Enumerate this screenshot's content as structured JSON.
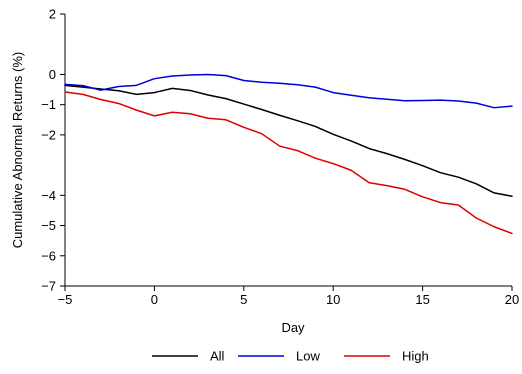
{
  "chart_data": {
    "type": "line",
    "title": "",
    "xlabel": "Day",
    "ylabel": "Cumulative Abnormal Returns (%)",
    "xlim": [
      -5,
      20
    ],
    "ylim": [
      -7,
      2
    ],
    "xticks": [
      -5,
      0,
      5,
      10,
      15,
      20
    ],
    "xtick_labels": [
      "−5",
      "0",
      "5",
      "10",
      "15",
      "20"
    ],
    "yticks": [
      2,
      0,
      -1,
      -2,
      -4,
      -5,
      -6,
      -7
    ],
    "ytick_labels": [
      "2",
      "0",
      "−1",
      "−2",
      "−4",
      "−5",
      "−6",
      "−7"
    ],
    "grid": false,
    "legend": "bottom",
    "x": [
      -5,
      -4,
      -3,
      -2,
      -1,
      0,
      1,
      2,
      3,
      4,
      5,
      6,
      7,
      8,
      9,
      10,
      11,
      12,
      13,
      14,
      15,
      16,
      17,
      18,
      19,
      20
    ],
    "series": [
      {
        "name": "All",
        "color": "#000000",
        "values": [
          -0.36,
          -0.42,
          -0.48,
          -0.54,
          -0.66,
          -0.6,
          -0.46,
          -0.53,
          -0.68,
          -0.8,
          -0.98,
          -1.16,
          -1.35,
          -1.53,
          -1.72,
          -1.98,
          -2.2,
          -2.45,
          -2.62,
          -2.81,
          -3.02,
          -3.25,
          -3.4,
          -3.62,
          -3.92,
          -4.03
        ]
      },
      {
        "name": "Low",
        "color": "#0000dd",
        "values": [
          -0.33,
          -0.37,
          -0.52,
          -0.4,
          -0.36,
          -0.14,
          -0.05,
          -0.02,
          0,
          -0.04,
          -0.2,
          -0.26,
          -0.29,
          -0.34,
          -0.42,
          -0.6,
          -0.69,
          -0.77,
          -0.82,
          -0.87,
          -0.86,
          -0.85,
          -0.88,
          -0.95,
          -1.1,
          -1.05
        ]
      },
      {
        "name": "High",
        "color": "#dd0000",
        "values": [
          -0.58,
          -0.66,
          -0.83,
          -0.96,
          -1.18,
          -1.37,
          -1.25,
          -1.3,
          -1.45,
          -1.5,
          -1.75,
          -1.96,
          -2.37,
          -2.52,
          -2.77,
          -2.95,
          -3.17,
          -3.58,
          -3.68,
          -3.8,
          -4.05,
          -4.24,
          -4.32,
          -4.75,
          -5.04,
          -5.26
        ]
      }
    ]
  }
}
